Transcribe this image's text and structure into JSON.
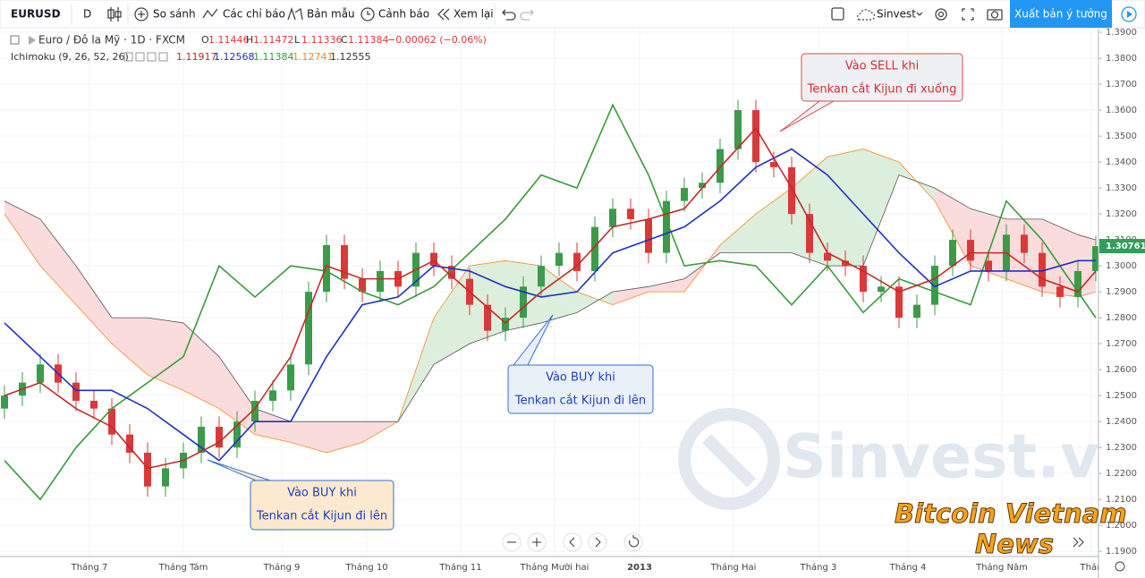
{
  "toolbar": {
    "symbol": "EURUSD",
    "interval": "D",
    "compare": "So sánh",
    "indicators": "Các chỉ báo",
    "templates": "Bản mẫu",
    "alerts": "Cảnh báo",
    "replay": "Xem lại",
    "layout": "Sinvest",
    "publish": "Xuất bản ý tưởng"
  },
  "legend": {
    "instrument": "Euro / Đô la Mỹ · 1D · FXCM",
    "ohlc": [
      {
        "key": "O",
        "value": "1.11446"
      },
      {
        "key": "H",
        "value": "1.11472"
      },
      {
        "key": "L",
        "value": "1.11336"
      },
      {
        "key": "C",
        "value": "1.11384"
      }
    ],
    "ohlc_color": "#e53935",
    "change": "−0.00062 (−0.06%)",
    "indicator": "Ichimoku (9, 26, 52, 26)",
    "indicator_values": [
      {
        "text": "1.11917",
        "color": "#c62828"
      },
      {
        "text": "1.12568",
        "color": "#1e2fc8"
      },
      {
        "text": "1.11384",
        "color": "#3a9a3a"
      },
      {
        "text": "1.12741",
        "color": "#f08a24"
      },
      {
        "text": "1.12555",
        "color": "#333333"
      }
    ]
  },
  "chart_data": {
    "type": "candlestick",
    "x": [
      0,
      4,
      8,
      12,
      16,
      20,
      24,
      28,
      32,
      36,
      40,
      44,
      48,
      52,
      56,
      60,
      64,
      68,
      72,
      76,
      80,
      84,
      88,
      92,
      96,
      100,
      104,
      108,
      112,
      116,
      120,
      124,
      128,
      132,
      136,
      140,
      144,
      148,
      152,
      156,
      160,
      164,
      168,
      172,
      176,
      180,
      184,
      188,
      192,
      196,
      200,
      204,
      208,
      212,
      216,
      220,
      224,
      228,
      232,
      236,
      240,
      244
    ],
    "open": [
      1.245,
      1.25,
      1.255,
      1.262,
      1.255,
      1.248,
      1.245,
      1.235,
      1.228,
      1.215,
      1.222,
      1.228,
      1.238,
      1.23,
      1.24,
      1.248,
      1.252,
      1.262,
      1.29,
      1.308,
      1.295,
      1.29,
      1.298,
      1.292,
      1.305,
      1.3,
      1.295,
      1.285,
      1.275,
      1.28,
      1.292,
      1.3,
      1.305,
      1.298,
      1.315,
      1.322,
      1.318,
      1.305,
      1.325,
      1.33,
      1.332,
      1.345,
      1.36,
      1.34,
      1.338,
      1.32,
      1.305,
      1.302,
      1.3,
      1.29,
      1.292,
      1.28,
      1.285,
      1.3,
      1.31,
      1.302,
      1.298,
      1.312,
      1.305,
      1.292,
      1.288,
      1.298
    ],
    "high": [
      1.254,
      1.259,
      1.266,
      1.266,
      1.259,
      1.252,
      1.249,
      1.239,
      1.232,
      1.226,
      1.232,
      1.242,
      1.242,
      1.244,
      1.252,
      1.256,
      1.266,
      1.294,
      1.312,
      1.312,
      1.299,
      1.302,
      1.302,
      1.309,
      1.309,
      1.304,
      1.299,
      1.289,
      1.284,
      1.296,
      1.304,
      1.309,
      1.309,
      1.319,
      1.326,
      1.326,
      1.322,
      1.329,
      1.334,
      1.336,
      1.349,
      1.364,
      1.364,
      1.344,
      1.342,
      1.324,
      1.309,
      1.306,
      1.304,
      1.296,
      1.296,
      1.289,
      1.304,
      1.314,
      1.314,
      1.306,
      1.316,
      1.316,
      1.309,
      1.296,
      1.302,
      1.3116
    ],
    "low": [
      1.241,
      1.246,
      1.251,
      1.251,
      1.244,
      1.241,
      1.231,
      1.224,
      1.211,
      1.211,
      1.218,
      1.224,
      1.226,
      1.226,
      1.236,
      1.244,
      1.248,
      1.258,
      1.286,
      1.291,
      1.286,
      1.286,
      1.288,
      1.288,
      1.296,
      1.291,
      1.281,
      1.271,
      1.271,
      1.276,
      1.288,
      1.296,
      1.294,
      1.294,
      1.311,
      1.314,
      1.301,
      1.301,
      1.321,
      1.326,
      1.328,
      1.341,
      1.336,
      1.334,
      1.316,
      1.301,
      1.298,
      1.296,
      1.286,
      1.286,
      1.276,
      1.276,
      1.281,
      1.296,
      1.298,
      1.294,
      1.294,
      1.301,
      1.288,
      1.284,
      1.284,
      1.294
    ],
    "close": [
      1.25,
      1.255,
      1.262,
      1.255,
      1.248,
      1.245,
      1.235,
      1.228,
      1.215,
      1.222,
      1.228,
      1.238,
      1.23,
      1.24,
      1.248,
      1.252,
      1.262,
      1.29,
      1.308,
      1.295,
      1.29,
      1.298,
      1.292,
      1.305,
      1.3,
      1.295,
      1.285,
      1.275,
      1.28,
      1.292,
      1.3,
      1.305,
      1.298,
      1.315,
      1.322,
      1.318,
      1.305,
      1.325,
      1.33,
      1.332,
      1.345,
      1.36,
      1.34,
      1.338,
      1.32,
      1.305,
      1.302,
      1.3,
      1.29,
      1.292,
      1.28,
      1.285,
      1.3,
      1.31,
      1.302,
      1.298,
      1.312,
      1.305,
      1.292,
      1.288,
      1.298,
      1.3076
    ],
    "up_color": "#3c9a4a",
    "down_color": "#d83a3a",
    "ichimoku": {
      "x": [
        0,
        8,
        16,
        24,
        32,
        40,
        48,
        56,
        64,
        72,
        80,
        88,
        96,
        104,
        112,
        120,
        128,
        136,
        144,
        152,
        160,
        168,
        176,
        184,
        192,
        200,
        208,
        216,
        224,
        232,
        240,
        244
      ],
      "tenkan": {
        "color": "#c62828",
        "values": [
          1.25,
          1.255,
          1.245,
          1.238,
          1.222,
          1.225,
          1.232,
          1.245,
          1.265,
          1.3,
          1.295,
          1.295,
          1.302,
          1.29,
          1.278,
          1.29,
          1.3,
          1.315,
          1.318,
          1.322,
          1.338,
          1.353,
          1.33,
          1.305,
          1.298,
          1.29,
          1.295,
          1.305,
          1.305,
          1.295,
          1.29,
          1.298
        ]
      },
      "kijun": {
        "color": "#1e2fc8",
        "values": [
          1.278,
          1.265,
          1.252,
          1.252,
          1.245,
          1.235,
          1.225,
          1.24,
          1.24,
          1.265,
          1.285,
          1.288,
          1.3,
          1.298,
          1.292,
          1.288,
          1.29,
          1.305,
          1.31,
          1.315,
          1.325,
          1.338,
          1.345,
          1.335,
          1.32,
          1.305,
          1.292,
          1.298,
          1.298,
          1.298,
          1.302,
          1.302
        ]
      },
      "chikou": {
        "color": "#3a9a3a",
        "values": [
          1.225,
          1.21,
          1.23,
          1.245,
          1.255,
          1.265,
          1.3,
          1.288,
          1.3,
          1.298,
          1.29,
          1.285,
          1.292,
          1.305,
          1.318,
          1.335,
          1.33,
          1.362,
          1.335,
          1.3,
          1.302,
          1.3,
          1.285,
          1.3,
          1.282,
          1.295,
          1.29,
          1.285,
          1.325,
          1.31,
          1.29,
          1.28
        ]
      },
      "span_a": {
        "color": "#f08a24",
        "values": [
          1.32,
          1.3,
          1.285,
          1.27,
          1.258,
          1.252,
          1.245,
          1.235,
          1.232,
          1.228,
          1.232,
          1.24,
          1.28,
          1.3,
          1.302,
          1.3,
          1.29,
          1.285,
          1.29,
          1.29,
          1.308,
          1.32,
          1.33,
          1.342,
          1.345,
          1.34,
          1.325,
          1.3,
          1.295,
          1.29,
          1.288,
          1.29
        ]
      },
      "span_b": {
        "color": "#555555",
        "values": [
          1.325,
          1.318,
          1.3,
          1.28,
          1.28,
          1.278,
          1.265,
          1.245,
          1.24,
          1.24,
          1.24,
          1.24,
          1.262,
          1.27,
          1.275,
          1.278,
          1.282,
          1.29,
          1.292,
          1.295,
          1.305,
          1.305,
          1.305,
          1.3,
          1.3,
          1.335,
          1.33,
          1.322,
          1.318,
          1.318,
          1.312,
          1.31
        ]
      },
      "cloud_up_color": "#dcefdc",
      "cloud_down_color": "#fadcdc"
    },
    "xlim": [
      -1,
      244.6
    ],
    "xticks": [
      {
        "value": 19,
        "label": "Tháng 7"
      },
      {
        "value": 40,
        "label": "Tháng Tám"
      },
      {
        "value": 62,
        "label": "Tháng 9"
      },
      {
        "value": 81,
        "label": "Tháng 10"
      },
      {
        "value": 102,
        "label": "Tháng 11"
      },
      {
        "value": 123,
        "label": "Tháng Mười hai"
      },
      {
        "value": 142,
        "label": "2013"
      },
      {
        "value": 163,
        "label": "Tháng Hai"
      },
      {
        "value": 182,
        "label": "Tháng 3"
      },
      {
        "value": 202,
        "label": "Tháng 4"
      },
      {
        "value": 223,
        "label": "Tháng Năm"
      },
      {
        "value": 243,
        "label": "Thán"
      }
    ],
    "ylim": [
      1.188,
      1.3914
    ],
    "yticks": [
      {
        "value": 1.19,
        "label": "1.1900"
      },
      {
        "value": 1.2,
        "label": "1.2000"
      },
      {
        "value": 1.21,
        "label": "1.2100"
      },
      {
        "value": 1.22,
        "label": "1.2200"
      },
      {
        "value": 1.23,
        "label": "1.2300"
      },
      {
        "value": 1.24,
        "label": "1.2400"
      },
      {
        "value": 1.25,
        "label": "1.2500"
      },
      {
        "value": 1.26,
        "label": "1.2600"
      },
      {
        "value": 1.27,
        "label": "1.2700"
      },
      {
        "value": 1.28,
        "label": "1.2800"
      },
      {
        "value": 1.29,
        "label": "1.2900"
      },
      {
        "value": 1.3,
        "label": "1.3000"
      },
      {
        "value": 1.31,
        "label": "1.3100"
      },
      {
        "value": 1.32,
        "label": "1.3200"
      },
      {
        "value": 1.33,
        "label": "1.3300"
      },
      {
        "value": 1.34,
        "label": "1.3400"
      },
      {
        "value": 1.35,
        "label": "1.3500"
      },
      {
        "value": 1.36,
        "label": "1.3600"
      },
      {
        "value": 1.37,
        "label": "1.3700"
      },
      {
        "value": 1.38,
        "label": "1.3800"
      },
      {
        "value": 1.39,
        "label": "1.3900"
      }
    ],
    "grid": true,
    "last_price": 1.30761,
    "last_price_color": "#2e9e5a",
    "annotations": [
      {
        "lines": [
          "Vào BUY khi",
          "Tenkan cắt Kijun đi lên"
        ],
        "color": "#1a3fbf",
        "border": "#2f6fd6",
        "fill": "#fde9cf"
      },
      {
        "lines": [
          "Vào BUY khi",
          "Tenkan cắt Kijun đi lên"
        ],
        "color": "#1a3fbf",
        "border": "#2f6fd6",
        "fill": "#eaf0f8"
      },
      {
        "lines": [
          "Vào SELL khi",
          "Tenkan cắt Kijun đi xuống"
        ],
        "color": "#d32f2f",
        "border": "#e04848",
        "fill": "#eef0f4"
      }
    ]
  },
  "watermark": {
    "site": "Sinvest.vn",
    "brand": [
      "Bitcoin Vietnam",
      "News"
    ]
  }
}
